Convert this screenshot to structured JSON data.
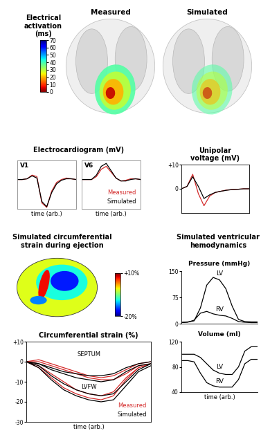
{
  "chart_data": [
    {
      "type": "image",
      "titles": [
        "Measured",
        "Simulated"
      ],
      "colorbar": {
        "label": "Electrical\nactivation\n(ms)",
        "range": [
          0,
          70
        ],
        "ticks": [
          0,
          10,
          20,
          30,
          40,
          50,
          60,
          70
        ]
      }
    },
    {
      "type": "line",
      "title": "Electrocardiogram (mV)",
      "xlabel": "time (arb.)",
      "tick_labels": false,
      "legend": "lower right",
      "x": [
        0,
        0.083,
        0.167,
        0.25,
        0.333,
        0.417,
        0.5,
        0.583,
        0.667,
        0.75,
        0.833,
        0.917,
        1
      ],
      "xlim": [
        0,
        1
      ],
      "ylim": [
        -2,
        1.3
      ],
      "panels": [
        {
          "title": "V1",
          "series": [
            {
              "name": "Measured",
              "color": "#d42a2a",
              "values": [
                0,
                0,
                0.05,
                0.3,
                0.2,
                -1.6,
                -1.9,
                -0.8,
                -0.2,
                0,
                0.1,
                0.05,
                0
              ]
            },
            {
              "name": "Simulated",
              "color": "#000000",
              "values": [
                0,
                0,
                0.05,
                0.25,
                0.1,
                -1.5,
                -1.85,
                -0.9,
                -0.3,
                -0.05,
                0.05,
                0.05,
                0
              ]
            }
          ]
        },
        {
          "title": "V6",
          "series": [
            {
              "name": "Measured",
              "color": "#d42a2a",
              "values": [
                0,
                0,
                0,
                0.2,
                0.7,
                0.9,
                0.5,
                0.1,
                -0.1,
                -0.05,
                0.05,
                0.05,
                0
              ]
            },
            {
              "name": "Simulated",
              "color": "#000000",
              "values": [
                0,
                0,
                0,
                0.3,
                0.9,
                1.1,
                0.6,
                0.1,
                -0.1,
                -0.1,
                0,
                0.05,
                0
              ]
            }
          ]
        }
      ]
    },
    {
      "type": "line",
      "title": "Unipolar\nvoltage (mV)",
      "tick_labels": "y",
      "x": [
        0,
        0.083,
        0.167,
        0.25,
        0.333,
        0.417,
        0.5,
        0.583,
        0.667,
        0.75,
        0.833,
        0.917,
        1
      ],
      "xlim": [
        0,
        1
      ],
      "ylim": [
        -10,
        10
      ],
      "yticks": [
        {
          "value": 10,
          "label": "+10"
        },
        0
      ],
      "series": [
        {
          "name": "Measured",
          "color": "#d42a2a",
          "values": [
            0,
            1,
            6,
            -2,
            -7,
            -3,
            -1.5,
            -1,
            -0.5,
            -0.3,
            -0.2,
            0,
            0
          ]
        },
        {
          "name": "Simulated",
          "color": "#000000",
          "values": [
            0,
            1,
            5,
            1,
            -4,
            -2.5,
            -1.5,
            -1,
            -0.6,
            -0.3,
            -0.2,
            0,
            0
          ]
        }
      ]
    },
    {
      "type": "image",
      "title": "Simulated circumferential\nstrain during ejection",
      "colorbar": {
        "range": [
          -20,
          10
        ],
        "ticks": [
          {
            "value": 10,
            "label": "+10%"
          },
          {
            "value": -20,
            "label": "-20%"
          }
        ]
      }
    },
    {
      "type": "line",
      "title": "Simulated ventricular\nhemodynamics",
      "xlabel": "time (arb.)",
      "tick_labels": "y",
      "x": [
        0,
        0.083,
        0.167,
        0.25,
        0.333,
        0.417,
        0.5,
        0.583,
        0.667,
        0.75,
        0.833,
        0.917,
        1
      ],
      "xlim": [
        0,
        1
      ],
      "panels": [
        {
          "title": "Pressure (mmHg)",
          "ylim": [
            0,
            150
          ],
          "yticks": [
            0,
            75,
            150
          ],
          "series": [
            {
              "name": "LV",
              "color": "#000000",
              "values": [
                4,
                5,
                8,
                45,
                110,
                132,
                125,
                100,
                50,
                12,
                6,
                5,
                5
              ]
            },
            {
              "name": "RV",
              "color": "#000000",
              "values": [
                3,
                4,
                10,
                30,
                35,
                28,
                24,
                22,
                15,
                6,
                4,
                3,
                3
              ]
            }
          ]
        },
        {
          "title": "Volume (ml)",
          "ylim": [
            40,
            120
          ],
          "yticks": [
            40,
            80,
            120
          ],
          "series": [
            {
              "name": "LV",
              "color": "#000000",
              "values": [
                100,
                100,
                100,
                95,
                85,
                75,
                70,
                68,
                68,
                80,
                105,
                112,
                112
              ]
            },
            {
              "name": "RV",
              "color": "#000000",
              "values": [
                90,
                90,
                88,
                70,
                55,
                50,
                48,
                48,
                48,
                60,
                85,
                92,
                92
              ]
            }
          ]
        }
      ]
    },
    {
      "type": "line",
      "title": "Circumferential strain (%)",
      "xlabel": "time (arb.)",
      "tick_labels": "y",
      "legend": "lower right",
      "x": [
        0,
        0.1,
        0.2,
        0.3,
        0.4,
        0.5,
        0.6,
        0.7,
        0.8,
        0.9,
        1.0
      ],
      "xlim": [
        0,
        1
      ],
      "ylim": [
        -30,
        10
      ],
      "yticks": [
        {
          "value": 10,
          "label": "+10"
        },
        0,
        -10,
        -20,
        -30
      ],
      "series": [
        {
          "name": "Measured",
          "color": "#d42a2a",
          "lines": [
            {
              "group": "SEPTUM",
              "values": [
                0,
                1,
                -1,
                -3,
                -5,
                -7,
                -8,
                -7,
                -4,
                -1,
                0
              ]
            },
            {
              "group": "SEPTUM",
              "values": [
                0,
                0,
                -2,
                -4,
                -6,
                -8,
                -9,
                -9,
                -6,
                -2,
                -1
              ]
            },
            {
              "group": "LVFW",
              "values": [
                0,
                -2,
                -6,
                -10,
                -14,
                -16,
                -17,
                -15,
                -8,
                -3,
                -1
              ]
            },
            {
              "group": "LVFW",
              "values": [
                0,
                -3,
                -8,
                -13,
                -16,
                -18,
                -19,
                -17,
                -9,
                -3,
                -1
              ]
            }
          ]
        },
        {
          "name": "Simulated",
          "color": "#000000",
          "lines": [
            {
              "group": "SEPTUM",
              "values": [
                0,
                -1,
                -3,
                -5,
                -6,
                -7,
                -7,
                -6,
                -3,
                -1,
                0
              ]
            },
            {
              "group": "SEPTUM",
              "values": [
                0,
                -1,
                -4,
                -6,
                -8,
                -9,
                -10,
                -9,
                -5,
                -2,
                -1
              ]
            },
            {
              "group": "LVFW",
              "values": [
                0,
                -2,
                -7,
                -11,
                -14,
                -16,
                -17,
                -16,
                -10,
                -4,
                -1
              ]
            },
            {
              "group": "LVFW",
              "values": [
                0,
                -3,
                -9,
                -14,
                -17,
                -19,
                -20,
                -19,
                -12,
                -5,
                -2
              ]
            }
          ]
        }
      ]
    }
  ]
}
